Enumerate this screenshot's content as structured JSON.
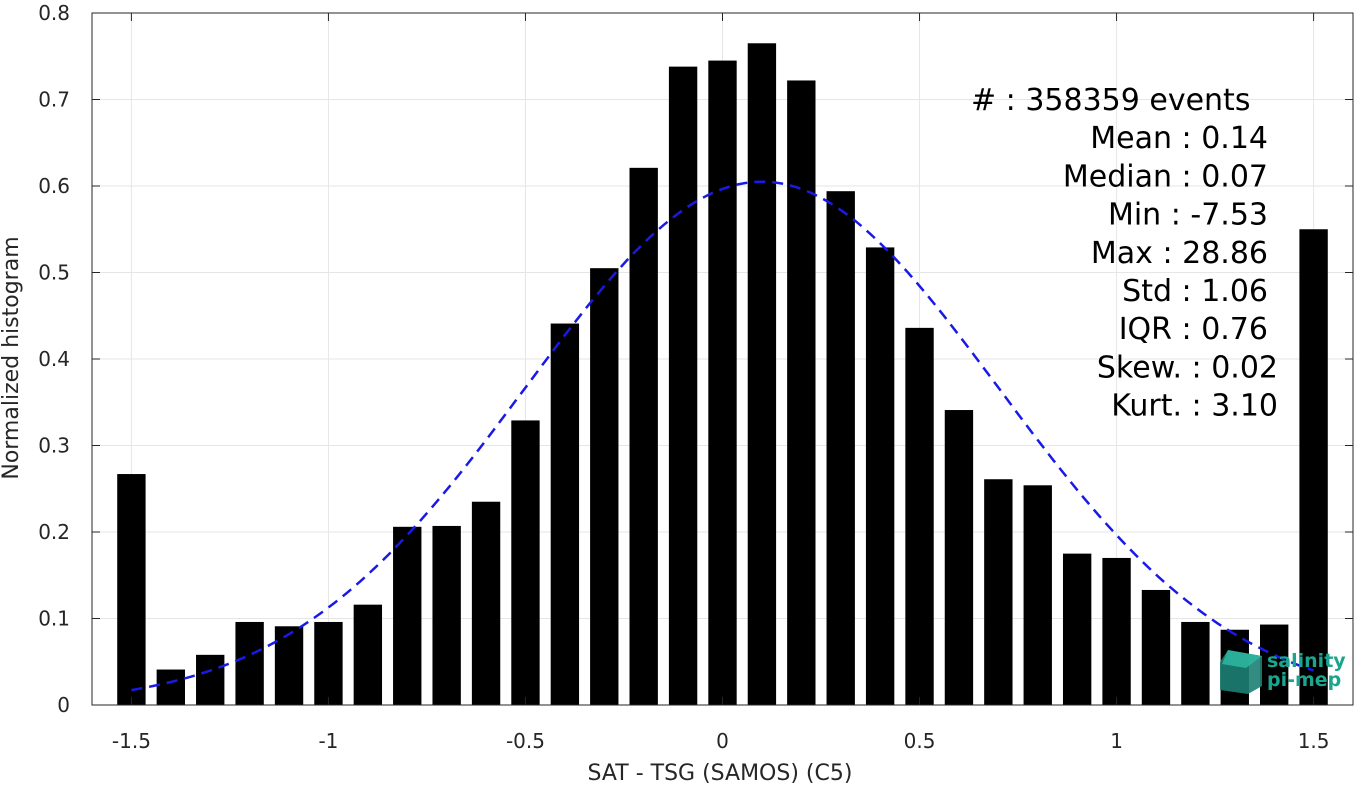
{
  "chart_data": {
    "type": "bar",
    "xlabel": "SAT - TSG (SAMOS) (C5)",
    "ylabel": "Normalized histogram",
    "xlim": [
      -1.6,
      1.6
    ],
    "ylim": [
      0,
      0.8
    ],
    "xticks": [
      -1.5,
      -1,
      -0.5,
      0,
      0.5,
      1,
      1.5
    ],
    "xtick_labels": [
      "-1.5",
      "-1",
      "-0.5",
      "0",
      "0.5",
      "1",
      "1.5"
    ],
    "yticks": [
      0,
      0.1,
      0.2,
      0.3,
      0.4,
      0.5,
      0.6,
      0.7,
      0.8
    ],
    "ytick_labels": [
      "0",
      "0.1",
      "0.2",
      "0.3",
      "0.4",
      "0.5",
      "0.6",
      "0.7",
      "0.8"
    ],
    "grid": true,
    "bar_color": "#000000",
    "x": [
      -1.5,
      -1.4,
      -1.3,
      -1.2,
      -1.1,
      -1.0,
      -0.9,
      -0.8,
      -0.7,
      -0.6,
      -0.5,
      -0.4,
      -0.3,
      -0.2,
      -0.1,
      0.0,
      0.1,
      0.2,
      0.3,
      0.4,
      0.5,
      0.6,
      0.7,
      0.8,
      0.9,
      1.0,
      1.1,
      1.2,
      1.3,
      1.4,
      1.5
    ],
    "values": [
      0.267,
      0.041,
      0.058,
      0.096,
      0.091,
      0.096,
      0.116,
      0.206,
      0.207,
      0.235,
      0.329,
      0.441,
      0.505,
      0.621,
      0.738,
      0.745,
      0.765,
      0.722,
      0.594,
      0.529,
      0.436,
      0.341,
      0.261,
      0.254,
      0.175,
      0.17,
      0.133,
      0.096,
      0.087,
      0.093,
      0.55
    ],
    "fit_curve": {
      "style": "dashed",
      "color": "#1a1ae6",
      "mean": 0.1,
      "peak": 0.605,
      "sigma": 0.6,
      "x_range": [
        -1.5,
        1.5
      ]
    },
    "stats": [
      {
        "label": "#  : 358359 events",
        "anchor": "start"
      },
      {
        "label": "Mean : 0.14",
        "anchor": "end"
      },
      {
        "label": "Median : 0.07",
        "anchor": "end"
      },
      {
        "label": "Min : -7.53",
        "anchor": "end"
      },
      {
        "label": "Max : 28.86",
        "anchor": "end"
      },
      {
        "label": "Std : 1.06",
        "anchor": "end"
      },
      {
        "label": "IQR : 0.76",
        "anchor": "end"
      },
      {
        "label": "Skew. : 0.02",
        "anchor": "end"
      },
      {
        "label": "Kurt. : 3.10",
        "anchor": "end"
      }
    ]
  },
  "logo": {
    "line1": "salinity",
    "line2": "pi-mep",
    "color": "#1aa58e"
  }
}
